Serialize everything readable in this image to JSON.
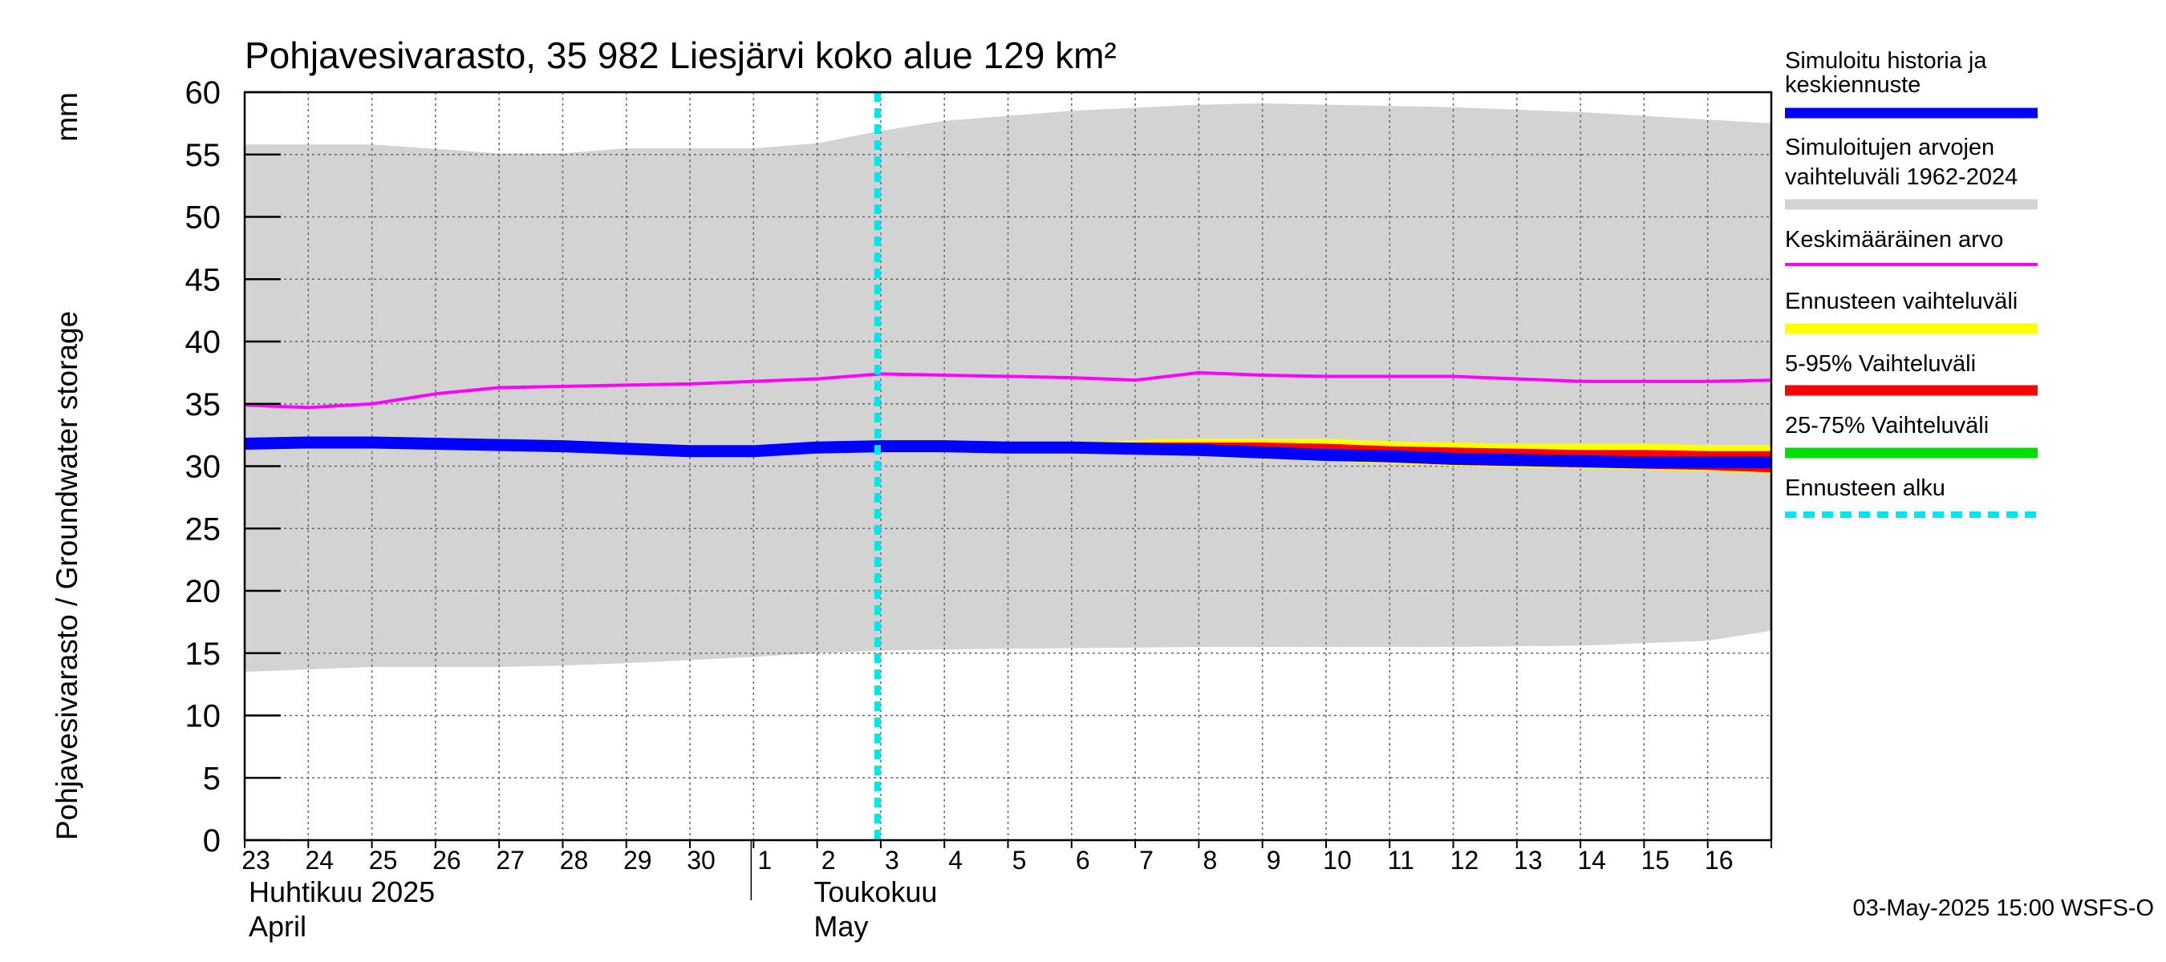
{
  "chart_data": {
    "type": "area",
    "title": "Pohjavesivarasto, 35 982 Liesjärvi koko alue 129 km²",
    "ylabel": "Pohjavesivarasto / Groundwater storage",
    "yunit": "mm",
    "ylim": [
      0,
      60
    ],
    "yticks": [
      0,
      5,
      10,
      15,
      20,
      25,
      30,
      35,
      40,
      45,
      50,
      55,
      60
    ],
    "x_start": "2025-04-23",
    "x_end": "2025-05-16",
    "x_tick_labels": [
      "23",
      "24",
      "25",
      "26",
      "27",
      "28",
      "29",
      "30",
      "1",
      "2",
      "3",
      "4",
      "5",
      "6",
      "7",
      "8",
      "9",
      "10",
      "11",
      "12",
      "13",
      "14",
      "15",
      "16"
    ],
    "month_labels": [
      {
        "fi": "Huhtikuu  2025",
        "en": "April",
        "start": "2025-04-23"
      },
      {
        "fi": "Toukokuu",
        "en": "May",
        "start": "2025-05-01"
      }
    ],
    "grid": true,
    "legend_position": "right",
    "forecast_start": "2025-05-03",
    "series": [
      {
        "name": "Simuloitujen arvojen vaihteluväli 1962-2024",
        "kind": "band",
        "color": "#d3d3d3",
        "x": [
          "2025-04-23",
          "2025-04-25",
          "2025-04-27",
          "2025-04-28",
          "2025-04-29",
          "2025-05-01",
          "2025-05-02",
          "2025-05-03",
          "2025-05-04",
          "2025-05-06",
          "2025-05-08",
          "2025-05-09",
          "2025-05-10",
          "2025-05-12",
          "2025-05-14",
          "2025-05-15",
          "2025-05-16",
          "2025-05-17"
        ],
        "upper": [
          55.8,
          55.8,
          55.1,
          55.1,
          55.5,
          55.5,
          55.9,
          56.9,
          57.7,
          58.5,
          59.0,
          59.1,
          59.0,
          58.8,
          58.4,
          58.1,
          57.8,
          57.5
        ],
        "lower": [
          13.5,
          13.9,
          13.9,
          14.0,
          14.2,
          14.7,
          15.0,
          15.2,
          15.3,
          15.4,
          15.5,
          15.5,
          15.5,
          15.5,
          15.6,
          15.8,
          16.0,
          16.8
        ]
      },
      {
        "name": "Ennusteen vaihteluväli",
        "kind": "band",
        "color": "#ffff00",
        "x": [
          "2025-05-05",
          "2025-05-06",
          "2025-05-07",
          "2025-05-08",
          "2025-05-09",
          "2025-05-10",
          "2025-05-11",
          "2025-05-12",
          "2025-05-13",
          "2025-05-14",
          "2025-05-15",
          "2025-05-16",
          "2025-05-17"
        ],
        "upper": [
          31.5,
          31.9,
          32.1,
          32.2,
          32.2,
          32.2,
          32.0,
          31.9,
          31.8,
          31.8,
          31.8,
          31.7,
          31.7
        ],
        "lower": [
          31.5,
          31.3,
          31.1,
          30.8,
          30.6,
          30.4,
          30.2,
          30.0,
          29.9,
          29.8,
          29.7,
          29.6,
          29.4
        ]
      },
      {
        "name": "5-95% Vaihteluväli",
        "kind": "band",
        "color": "#ff0000",
        "x": [
          "2025-05-05",
          "2025-05-06",
          "2025-05-07",
          "2025-05-08",
          "2025-05-09",
          "2025-05-10",
          "2025-05-11",
          "2025-05-12",
          "2025-05-13",
          "2025-05-14",
          "2025-05-15",
          "2025-05-16",
          "2025-05-17"
        ],
        "upper": [
          31.5,
          31.7,
          31.9,
          31.9,
          31.9,
          31.8,
          31.6,
          31.5,
          31.4,
          31.3,
          31.3,
          31.2,
          31.2
        ],
        "lower": [
          31.5,
          31.3,
          31.1,
          30.9,
          30.7,
          30.5,
          30.3,
          30.1,
          30.0,
          29.9,
          29.8,
          29.7,
          29.5
        ]
      },
      {
        "name": "25-75% Vaihteluväli",
        "kind": "band",
        "color": "#00dd00",
        "x": [
          "2025-05-05",
          "2025-05-07",
          "2025-05-09",
          "2025-05-11",
          "2025-05-13",
          "2025-05-15",
          "2025-05-17"
        ],
        "upper": [
          31.5,
          31.5,
          31.3,
          31.0,
          30.8,
          30.7,
          30.6
        ],
        "lower": [
          31.5,
          31.3,
          31.0,
          30.7,
          30.5,
          30.3,
          30.2
        ]
      },
      {
        "name": "Keskimääräinen arvo",
        "kind": "line",
        "color": "#ff00ff",
        "x": [
          "2025-04-23",
          "2025-04-24",
          "2025-04-25",
          "2025-04-26",
          "2025-04-27",
          "2025-04-28",
          "2025-04-29",
          "2025-04-30",
          "2025-05-01",
          "2025-05-02",
          "2025-05-03",
          "2025-05-04",
          "2025-05-05",
          "2025-05-06",
          "2025-05-07",
          "2025-05-08",
          "2025-05-09",
          "2025-05-10",
          "2025-05-11",
          "2025-05-12",
          "2025-05-13",
          "2025-05-14",
          "2025-05-15",
          "2025-05-16",
          "2025-05-17"
        ],
        "values": [
          34.9,
          34.7,
          35.0,
          35.8,
          36.3,
          36.4,
          36.5,
          36.6,
          36.8,
          37.0,
          37.4,
          37.3,
          37.2,
          37.1,
          36.9,
          37.5,
          37.3,
          37.2,
          37.2,
          37.2,
          37.0,
          36.8,
          36.8,
          36.8,
          36.9
        ]
      },
      {
        "name": "Simuloitu historia ja keskiennuste",
        "kind": "line",
        "color": "#0000ff",
        "x": [
          "2025-04-23",
          "2025-04-24",
          "2025-04-25",
          "2025-04-26",
          "2025-04-27",
          "2025-04-28",
          "2025-04-29",
          "2025-04-30",
          "2025-05-01",
          "2025-05-02",
          "2025-05-03",
          "2025-05-04",
          "2025-05-05",
          "2025-05-06",
          "2025-05-07",
          "2025-05-08",
          "2025-05-09",
          "2025-05-10",
          "2025-05-11",
          "2025-05-12",
          "2025-05-13",
          "2025-05-14",
          "2025-05-15",
          "2025-05-16",
          "2025-05-17"
        ],
        "values": [
          31.8,
          31.9,
          31.9,
          31.8,
          31.7,
          31.6,
          31.4,
          31.2,
          31.2,
          31.5,
          31.6,
          31.6,
          31.5,
          31.5,
          31.4,
          31.3,
          31.1,
          30.9,
          30.8,
          30.6,
          30.5,
          30.4,
          30.3,
          30.3,
          30.3
        ]
      }
    ]
  },
  "legend": [
    {
      "label": "Simuloitu historia ja\nkeskiennuste",
      "color": "#0000ff",
      "style": "thick"
    },
    {
      "label": "Simuloitujen arvojen\nvaihteluväli 1962-2024",
      "color": "#d3d3d3",
      "style": "medium"
    },
    {
      "label": "Keskimääräinen arvo",
      "color": "#ff00ff",
      "style": "thin"
    },
    {
      "label": "Ennusteen vaihteluväli",
      "color": "#ffff00",
      "style": "medium"
    },
    {
      "label": "5-95% Vaihteluväli",
      "color": "#ff0000",
      "style": "medium"
    },
    {
      "label": "25-75% Vaihteluväli",
      "color": "#00dd00",
      "style": "medium"
    },
    {
      "label": "Ennusteen alku",
      "color": "#00e5ee",
      "style": "dashed"
    }
  ],
  "footer": "03-May-2025 15:00 WSFS-O"
}
